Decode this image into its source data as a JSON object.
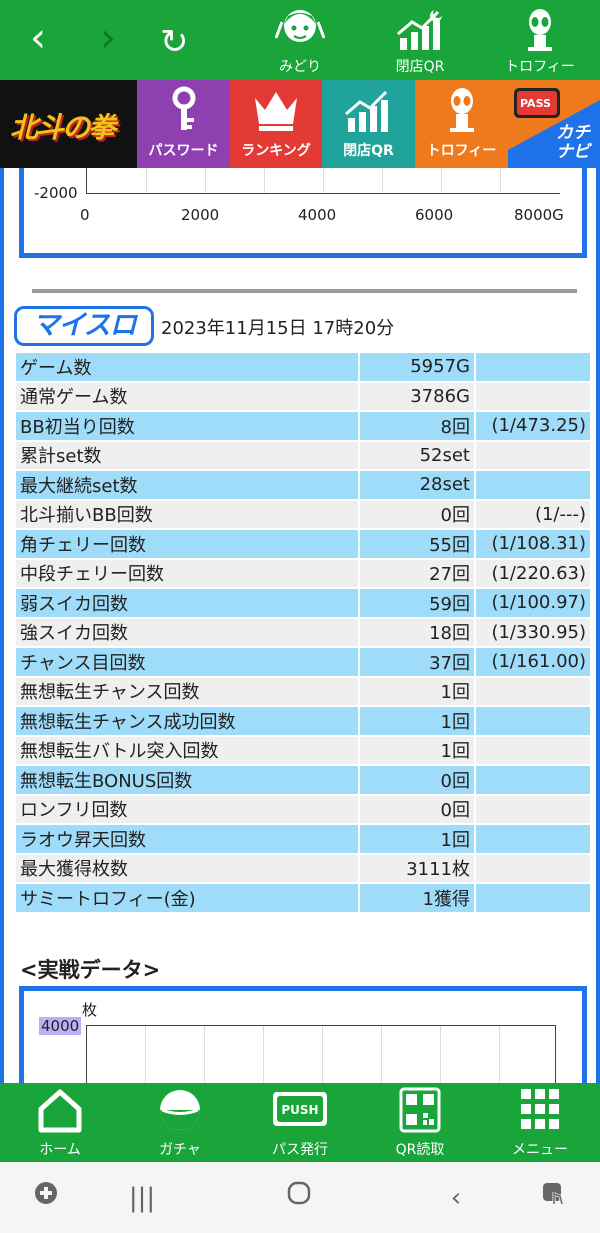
{
  "topbar": {
    "items": [
      {
        "label": "みどり",
        "icon": "character-icon"
      },
      {
        "label": "閉店QR",
        "icon": "closing-chart-icon"
      },
      {
        "label": "トロフィー",
        "icon": "alien-trophy-icon"
      }
    ]
  },
  "menu": {
    "logo": "北斗の拳",
    "items": [
      {
        "label": "パスワード",
        "color": "#8e3fb0"
      },
      {
        "label": "ランキング",
        "color": "#e43a36"
      },
      {
        "label": "閉店QR",
        "color": "#1fa39a"
      },
      {
        "label": "トロフィー",
        "color": "#ef7a1d"
      }
    ],
    "katinavi_pass": "PASS",
    "katinavi": "カチナビ"
  },
  "chart_top": {
    "y_tick": "-2000",
    "x_ticks": [
      "0",
      "2000",
      "4000",
      "6000",
      "8000G"
    ]
  },
  "myslo": {
    "logo": "マイスロ",
    "datetime": "2023年11月15日 17時20分"
  },
  "stats": [
    {
      "label": "ゲーム数",
      "value": "5957G",
      "ratio": ""
    },
    {
      "label": "通常ゲーム数",
      "value": "3786G",
      "ratio": ""
    },
    {
      "label": "BB初当り回数",
      "value": "8回",
      "ratio": "(1/473.25)"
    },
    {
      "label": "累計set数",
      "value": "52set",
      "ratio": ""
    },
    {
      "label": "最大継続set数",
      "value": "28set",
      "ratio": ""
    },
    {
      "label": "北斗揃いBB回数",
      "value": "0回",
      "ratio": "(1/---)"
    },
    {
      "label": "角チェリー回数",
      "value": "55回",
      "ratio": "(1/108.31)"
    },
    {
      "label": "中段チェリー回数",
      "value": "27回",
      "ratio": "(1/220.63)"
    },
    {
      "label": "弱スイカ回数",
      "value": "59回",
      "ratio": "(1/100.97)"
    },
    {
      "label": "強スイカ回数",
      "value": "18回",
      "ratio": "(1/330.95)"
    },
    {
      "label": "チャンス目回数",
      "value": "37回",
      "ratio": "(1/161.00)"
    },
    {
      "label": "無想転生チャンス回数",
      "value": "1回",
      "ratio": ""
    },
    {
      "label": "無想転生チャンス成功回数",
      "value": "1回",
      "ratio": ""
    },
    {
      "label": "無想転生バトル突入回数",
      "value": "1回",
      "ratio": ""
    },
    {
      "label": "無想転生BONUS回数",
      "value": "0回",
      "ratio": ""
    },
    {
      "label": "ロンフリ回数",
      "value": "0回",
      "ratio": ""
    },
    {
      "label": "ラオウ昇天回数",
      "value": "1回",
      "ratio": ""
    },
    {
      "label": "最大獲得枚数",
      "value": "3111枚",
      "ratio": ""
    },
    {
      "label": "サミートロフィー(金)",
      "value": "1獲得",
      "ratio": ""
    }
  ],
  "section": {
    "title": "<実戦データ>"
  },
  "chart_bottom": {
    "unit": "枚",
    "y_tick": "4000"
  },
  "bottomnav": {
    "items": [
      {
        "label": "ホーム"
      },
      {
        "label": "ガチャ"
      },
      {
        "label": "パス発行"
      },
      {
        "label": "QR読取"
      },
      {
        "label": "メニュー"
      }
    ],
    "push_text": "PUSH"
  },
  "colors": {
    "green": "#19a53a",
    "blue": "#1e73e8",
    "row_blue": "#9fdcf9",
    "row_gray": "#efefef"
  }
}
